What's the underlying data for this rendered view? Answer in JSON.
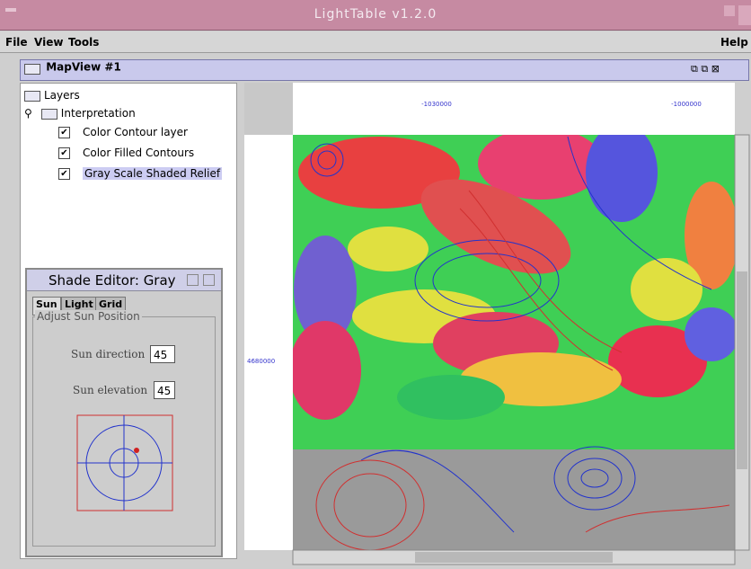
{
  "window": {
    "title": "LightTable v1.2.0"
  },
  "menu": {
    "left": [
      "File",
      "View",
      "Tools"
    ],
    "right": "Help"
  },
  "internal_frame": {
    "title": "MapView #1"
  },
  "tree": {
    "nodes": [
      {
        "label": "Layers"
      },
      {
        "label": "Interpretation"
      },
      {
        "label": "Color Contour layer",
        "checked": true
      },
      {
        "label": "Color Filled Contours",
        "checked": true
      },
      {
        "label": "Gray Scale Shaded Relief",
        "checked": true
      }
    ]
  },
  "shade_editor": {
    "title": "Shade Editor: Gray",
    "tabs": [
      "Sun",
      "Light",
      "Grid"
    ],
    "group": "Adjust Sun Position",
    "fields": [
      {
        "label": "Sun direction",
        "value": "45"
      },
      {
        "label": "Sun elevation",
        "value": "45"
      }
    ]
  },
  "map": {
    "x_labels": [
      "-1030000",
      "-1000000"
    ],
    "y_labels": [
      "4680000"
    ]
  }
}
